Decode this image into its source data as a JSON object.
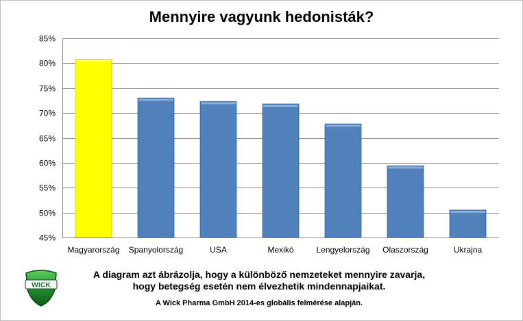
{
  "chart_data": {
    "type": "bar",
    "title": "Mennyire vagyunk hedonisták?",
    "categories": [
      "Magyarország",
      "Spanyolország",
      "USA",
      "Mexikó",
      "Lengyelország",
      "Olaszország",
      "Ukrajna"
    ],
    "values": [
      80.8,
      73.0,
      72.3,
      71.8,
      67.8,
      59.4,
      50.5
    ],
    "ylim": [
      45,
      85
    ],
    "yticks": [
      45,
      50,
      55,
      60,
      65,
      70,
      75,
      80,
      85
    ],
    "ytick_format": "%",
    "grid": true,
    "highlight_index": 0,
    "colors": {
      "bar": "#4f81bd",
      "highlight": "#ffff00",
      "grid": "#868686"
    }
  },
  "caption": {
    "line1": "A diagram azt ábrázolja, hogy  a különböző nemzeteket mennyire zavarja,",
    "line2": "hogy betegség esetén nem élvezhetik mindennapjaikat."
  },
  "source": "A Wick Pharma GmbH 2014-es globális felmérése alapján.",
  "logo": {
    "text": "WICK",
    "icon": "wick-logo-icon",
    "color": "#1a7a2e"
  }
}
